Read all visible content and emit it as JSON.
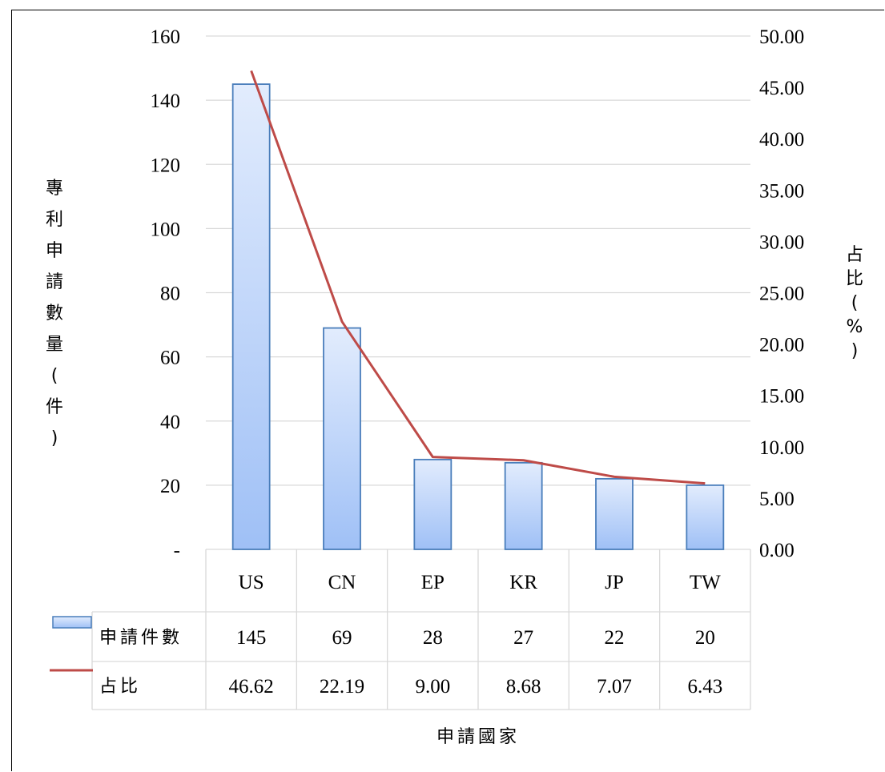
{
  "chart_data": {
    "type": "bar",
    "categories": [
      "US",
      "CN",
      "EP",
      "KR",
      "JP",
      "TW"
    ],
    "series": [
      {
        "name": "申請件數",
        "type": "bar",
        "axis": "left",
        "values": [
          145,
          69,
          28,
          27,
          22,
          20
        ]
      },
      {
        "name": "占比",
        "type": "line",
        "axis": "right",
        "values": [
          46.62,
          22.19,
          9.0,
          8.68,
          7.07,
          6.43
        ]
      }
    ],
    "table_rows": [
      {
        "label": "申請件數",
        "cells": [
          "145",
          "69",
          "28",
          "27",
          "22",
          "20"
        ]
      },
      {
        "label": "占比",
        "cells": [
          "46.62",
          "22.19",
          "9.00",
          "8.68",
          "7.07",
          "6.43"
        ]
      }
    ],
    "xlabel": "申請國家",
    "ylabel_left": "專利申請數量(件)",
    "ylabel_right": "占比(%)",
    "ylim_left": [
      0,
      160
    ],
    "ylim_right": [
      0,
      50
    ],
    "left_ticks": [
      "-",
      "20",
      "40",
      "60",
      "80",
      "100",
      "120",
      "140",
      "160"
    ],
    "right_ticks": [
      "0.00",
      "5.00",
      "10.00",
      "15.00",
      "20.00",
      "25.00",
      "30.00",
      "35.00",
      "40.00",
      "45.00",
      "50.00"
    ],
    "grid": true,
    "legend": "data-table",
    "colors": {
      "bar_fill_top": "#e2ecfd",
      "bar_fill_bottom": "#9fc0f6",
      "bar_edge": "#4a7ebb",
      "line": "#be4b48",
      "grid": "#d9d9d9"
    }
  }
}
